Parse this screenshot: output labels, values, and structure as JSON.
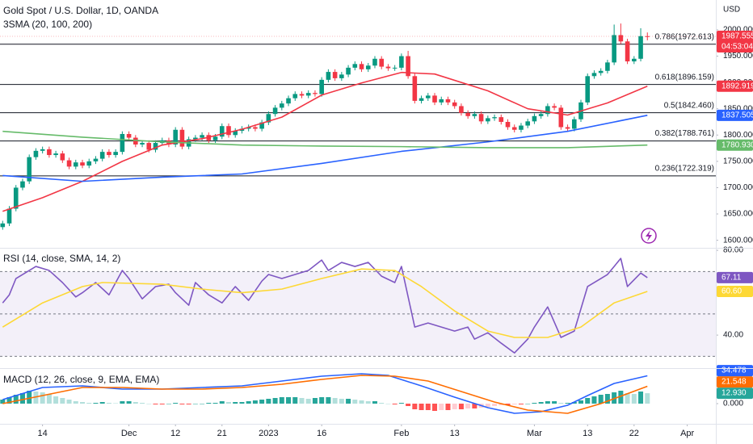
{
  "chart_data": [
    {
      "type": "candlestick",
      "title": "Gold Spot / U.S. Dollar, 1D, OANDA",
      "indicator": "3SMA (20, 100, 200)",
      "unit": "USD",
      "colors": {
        "up": "#089981",
        "down": "#f23645"
      },
      "open": [
        1625,
        1632,
        1660,
        1700,
        1712,
        1758,
        1770,
        1773,
        1762,
        1765,
        1752,
        1740,
        1748,
        1742,
        1750,
        1755,
        1768,
        1762,
        1768,
        1802,
        1795,
        1782,
        1785,
        1772,
        1785,
        1790,
        1782,
        1810,
        1778,
        1792,
        1795,
        1800,
        1790,
        1797,
        1817,
        1800,
        1808,
        1812,
        1815,
        1812,
        1824,
        1840,
        1852,
        1860,
        1870,
        1878,
        1875,
        1880,
        1878,
        1905,
        1920,
        1908,
        1915,
        1928,
        1935,
        1925,
        1932,
        1945,
        1930,
        1927,
        1928,
        1950,
        1912,
        1865,
        1870,
        1875,
        1862,
        1868,
        1862,
        1855,
        1842,
        1836,
        1840,
        1826,
        1832,
        1834,
        1825,
        1815,
        1810,
        1818,
        1826,
        1836,
        1840,
        1855,
        1852,
        1815,
        1812,
        1830,
        1862,
        1912,
        1918,
        1922,
        1938,
        1990,
        1978,
        1940,
        1945,
        1988
      ],
      "high": [
        1637,
        1665,
        1705,
        1717,
        1763,
        1775,
        1778,
        1778,
        1770,
        1770,
        1757,
        1753,
        1753,
        1755,
        1760,
        1773,
        1773,
        1773,
        1807,
        1807,
        1800,
        1790,
        1790,
        1790,
        1795,
        1795,
        1815,
        1815,
        1797,
        1800,
        1805,
        1805,
        1802,
        1822,
        1822,
        1813,
        1817,
        1820,
        1820,
        1829,
        1845,
        1857,
        1865,
        1875,
        1883,
        1883,
        1885,
        1885,
        1910,
        1925,
        1925,
        1920,
        1933,
        1940,
        1940,
        1937,
        1950,
        1950,
        1935,
        1933,
        1955,
        1960,
        1917,
        1875,
        1880,
        1880,
        1873,
        1873,
        1867,
        1860,
        1847,
        1845,
        1845,
        1837,
        1839,
        1839,
        1830,
        1820,
        1823,
        1831,
        1841,
        1845,
        1860,
        1860,
        1857,
        1820,
        1835,
        1867,
        1917,
        1923,
        1927,
        1943,
        2010,
        2012,
        1983,
        1950,
        2003,
        1995
      ],
      "low": [
        1620,
        1627,
        1655,
        1695,
        1707,
        1753,
        1765,
        1757,
        1757,
        1747,
        1735,
        1735,
        1737,
        1737,
        1745,
        1750,
        1757,
        1757,
        1763,
        1790,
        1777,
        1777,
        1767,
        1767,
        1780,
        1777,
        1777,
        1773,
        1773,
        1787,
        1790,
        1785,
        1785,
        1792,
        1795,
        1795,
        1803,
        1807,
        1807,
        1807,
        1819,
        1835,
        1847,
        1855,
        1865,
        1870,
        1870,
        1873,
        1873,
        1900,
        1903,
        1903,
        1910,
        1923,
        1920,
        1920,
        1927,
        1925,
        1922,
        1922,
        1923,
        1907,
        1860,
        1860,
        1865,
        1857,
        1857,
        1857,
        1850,
        1837,
        1831,
        1831,
        1821,
        1821,
        1827,
        1820,
        1810,
        1805,
        1805,
        1813,
        1821,
        1831,
        1835,
        1847,
        1810,
        1807,
        1807,
        1825,
        1857,
        1907,
        1913,
        1917,
        1933,
        1973,
        1935,
        1935,
        1940,
        1980
      ],
      "close": [
        1632,
        1660,
        1700,
        1712,
        1758,
        1770,
        1773,
        1762,
        1765,
        1752,
        1740,
        1748,
        1742,
        1750,
        1755,
        1768,
        1762,
        1768,
        1802,
        1795,
        1782,
        1785,
        1772,
        1785,
        1790,
        1782,
        1810,
        1778,
        1792,
        1795,
        1800,
        1790,
        1797,
        1817,
        1800,
        1808,
        1812,
        1815,
        1812,
        1824,
        1840,
        1852,
        1860,
        1870,
        1878,
        1875,
        1880,
        1878,
        1905,
        1920,
        1908,
        1915,
        1928,
        1935,
        1925,
        1932,
        1945,
        1930,
        1927,
        1928,
        1950,
        1912,
        1865,
        1870,
        1875,
        1862,
        1868,
        1862,
        1855,
        1842,
        1836,
        1840,
        1826,
        1832,
        1834,
        1825,
        1815,
        1810,
        1818,
        1826,
        1836,
        1840,
        1855,
        1852,
        1815,
        1812,
        1830,
        1862,
        1912,
        1918,
        1922,
        1938,
        1990,
        1978,
        1940,
        1945,
        1988,
        1987.555
      ],
      "series": [
        {
          "color": "#f23645",
          "x": [
            0,
            6,
            12,
            18,
            24,
            30,
            36,
            42,
            48,
            54,
            60,
            65,
            73,
            79,
            85,
            91,
            97
          ],
          "values": [
            1655,
            1681,
            1712,
            1750,
            1781,
            1793,
            1811,
            1834,
            1876,
            1899,
            1919,
            1916,
            1884,
            1850,
            1838,
            1861,
            1892.919
          ]
        },
        {
          "color": "#2962ff",
          "x": [
            0,
            12,
            24,
            36,
            48,
            60,
            73,
            85,
            97
          ],
          "values": [
            1723,
            1712,
            1720,
            1726,
            1746,
            1769,
            1787,
            1807,
            1837.505
          ]
        },
        {
          "color": "#66bb6a",
          "x": [
            0,
            12,
            24,
            36,
            48,
            60,
            73,
            85,
            97
          ],
          "values": [
            1807,
            1796,
            1787,
            1781,
            1779,
            1778,
            1776,
            1776,
            1780.93
          ]
        }
      ],
      "levels": [
        {
          "value": 1972.613,
          "label": "0.786(1972.613)"
        },
        {
          "value": 1896.159,
          "label": "0.618(1896.159)"
        },
        {
          "value": 1842.46,
          "label": "0.5(1842.460)"
        },
        {
          "value": 1788.761,
          "label": "0.382(1788.761)"
        },
        {
          "value": 1722.319,
          "label": "0.236(1722.319)"
        }
      ],
      "xlim": [
        -0.4,
        107.3
      ],
      "ylim": [
        1585.6,
        2056.7
      ],
      "yticks": [
        {
          "value": 2000,
          "label": "2000.000"
        },
        {
          "value": 1950,
          "label": "1950.000"
        },
        {
          "value": 1900,
          "label": "1900.000"
        },
        {
          "value": 1850,
          "label": "1850.000"
        },
        {
          "value": 1800,
          "label": "1800.000"
        },
        {
          "value": 1750,
          "label": "1750.000"
        },
        {
          "value": 1700,
          "label": "1700.000"
        },
        {
          "value": 1650,
          "label": "1650.000"
        },
        {
          "value": 1600,
          "label": "1600.000"
        }
      ],
      "badges": [
        {
          "value": 1987.555,
          "label": "1987.555",
          "countdown": "04:53:04",
          "color": "#f23645"
        },
        {
          "value": 1892.919,
          "label": "1892.919",
          "color": "#f23645"
        },
        {
          "value": 1837.505,
          "label": "1837.505",
          "color": "#2962ff"
        },
        {
          "value": 1780.93,
          "label": "1780.930",
          "color": "#66bb6a"
        }
      ]
    },
    {
      "type": "line",
      "title": "RSI (14, close, SMA, 14, 2)",
      "series": [
        {
          "color": "#7e57c2",
          "x": [
            0,
            1,
            2,
            4,
            5,
            7,
            9,
            11,
            12,
            14,
            16,
            18,
            19,
            21,
            23,
            25,
            26,
            28,
            29,
            31,
            33,
            35,
            37,
            39,
            40,
            42,
            44,
            46,
            48,
            49,
            51,
            53,
            55,
            57,
            59,
            60,
            62,
            64,
            66,
            68,
            70,
            71,
            73,
            75,
            77,
            79,
            80,
            82,
            84,
            86,
            88,
            90,
            91,
            93,
            94,
            96,
            97
          ],
          "values": [
            55.2,
            59,
            66.7,
            70.5,
            72.4,
            70.5,
            64.8,
            58,
            60,
            64.8,
            59,
            70.5,
            66.7,
            57.1,
            62.9,
            64,
            60,
            54.1,
            64.8,
            59,
            55.2,
            62.9,
            56.4,
            65.5,
            68.6,
            66.7,
            68.6,
            70.5,
            75.4,
            70.5,
            74.3,
            72.4,
            74.3,
            67.8,
            64.8,
            72.4,
            43.8,
            45.7,
            43.8,
            41.9,
            43.8,
            38.1,
            41.1,
            36.2,
            31.6,
            38.1,
            43.8,
            53.3,
            38.9,
            41.9,
            62.9,
            66.7,
            68.6,
            76.2,
            62.9,
            69.3,
            67.11
          ]
        },
        {
          "color": "#fdd835",
          "x": [
            0,
            6,
            12,
            15,
            24,
            30,
            36,
            42,
            48,
            54,
            59,
            63,
            68,
            73,
            77,
            82,
            87,
            92,
            97
          ],
          "values": [
            43.8,
            55.2,
            62.9,
            64.8,
            64,
            61.7,
            60,
            61.7,
            66.7,
            71.2,
            70.5,
            62.9,
            51.4,
            41.9,
            38.9,
            38.9,
            43.8,
            55.2,
            60.6
          ]
        }
      ],
      "levels": [
        70,
        50,
        30
      ],
      "band": [
        30,
        70
      ],
      "band_color": "#7e57c2",
      "xlim": [
        -0.4,
        107.3
      ],
      "ylim": [
        24.8,
        80.8
      ],
      "yticks": [
        {
          "value": 80,
          "label": "80.00"
        },
        {
          "value": 40,
          "label": "40.00"
        }
      ],
      "badges": [
        {
          "value": 67.11,
          "label": "67.11",
          "color": "#7e57c2"
        },
        {
          "value": 60.6,
          "label": "60.60",
          "color": "#fdd835"
        }
      ]
    },
    {
      "type": "macd",
      "title": "MACD (12, 26, close, 9, EMA, EMA)",
      "histogram": [
        5,
        8,
        11,
        13,
        16,
        15,
        14,
        12,
        9,
        7,
        5,
        3,
        2,
        1,
        1,
        2,
        1,
        0.5,
        3,
        3,
        2,
        1,
        0,
        -1,
        -1,
        0,
        1,
        -1,
        -1,
        0,
        0,
        1,
        1,
        3,
        2,
        2,
        2,
        3,
        4,
        5,
        6,
        7,
        8,
        8,
        8,
        7,
        6,
        7,
        8,
        8,
        7,
        6,
        6,
        5,
        4,
        3,
        3,
        1,
        0,
        -1,
        1,
        -3,
        -7,
        -8,
        -8,
        -9,
        -8,
        -8,
        -7,
        -7,
        -6,
        -6,
        -5,
        -4,
        -3,
        -2,
        -2,
        -1,
        -1,
        0,
        1,
        2,
        3,
        3,
        1,
        1,
        2,
        4,
        7,
        9,
        11,
        12,
        14,
        16,
        13,
        12,
        15,
        12.93
      ],
      "hist_colors": {
        "up_strong": "#26a69a",
        "up_weak": "#b2dfdb",
        "down_strong": "#ff5252",
        "down_weak": "#ffcdd2"
      },
      "series": [
        {
          "color": "#2962ff",
          "x": [
            0,
            6,
            12,
            18,
            24,
            30,
            36,
            42,
            48,
            54,
            58,
            63,
            68,
            73,
            77,
            81,
            85,
            88,
            92,
            97
          ],
          "values": [
            5,
            20,
            22,
            18,
            18,
            20,
            22,
            28,
            34,
            37,
            35,
            22,
            8,
            -5,
            -12,
            -10,
            -2,
            10,
            25,
            34.478
          ]
        },
        {
          "color": "#ff6d00",
          "x": [
            0,
            6,
            12,
            18,
            24,
            30,
            36,
            42,
            48,
            54,
            59,
            64,
            69,
            74,
            79,
            85,
            90,
            97
          ],
          "values": [
            0,
            10,
            20,
            20,
            18,
            18,
            20,
            24,
            30,
            35,
            34,
            28,
            15,
            2,
            -8,
            -12,
            0,
            21.548
          ]
        }
      ],
      "xlim": [
        -0.4,
        107.3
      ],
      "ylim": [
        -25,
        42
      ],
      "yticks": [
        {
          "value": 0,
          "label": "0.000"
        }
      ],
      "xticks": [
        {
          "value": 6,
          "label": "14"
        },
        {
          "value": 19,
          "label": "Dec"
        },
        {
          "value": 26,
          "label": "12"
        },
        {
          "value": 33,
          "label": "21"
        },
        {
          "value": 40,
          "label": "2023"
        },
        {
          "value": 48,
          "label": "16"
        },
        {
          "value": 60,
          "label": "Feb"
        },
        {
          "value": 68,
          "label": "13"
        },
        {
          "value": 80,
          "label": "Mar"
        },
        {
          "value": 88,
          "label": "13"
        },
        {
          "value": 95,
          "label": "22"
        },
        {
          "value": 103,
          "label": "Apr"
        }
      ],
      "badges": [
        {
          "value": 34.478,
          "label": "34.478",
          "color": "#2962ff"
        },
        {
          "value": 21.548,
          "label": "21.548",
          "color": "#ff6d00"
        },
        {
          "value": 12.93,
          "label": "12.930",
          "color": "#26a69a"
        }
      ]
    }
  ]
}
